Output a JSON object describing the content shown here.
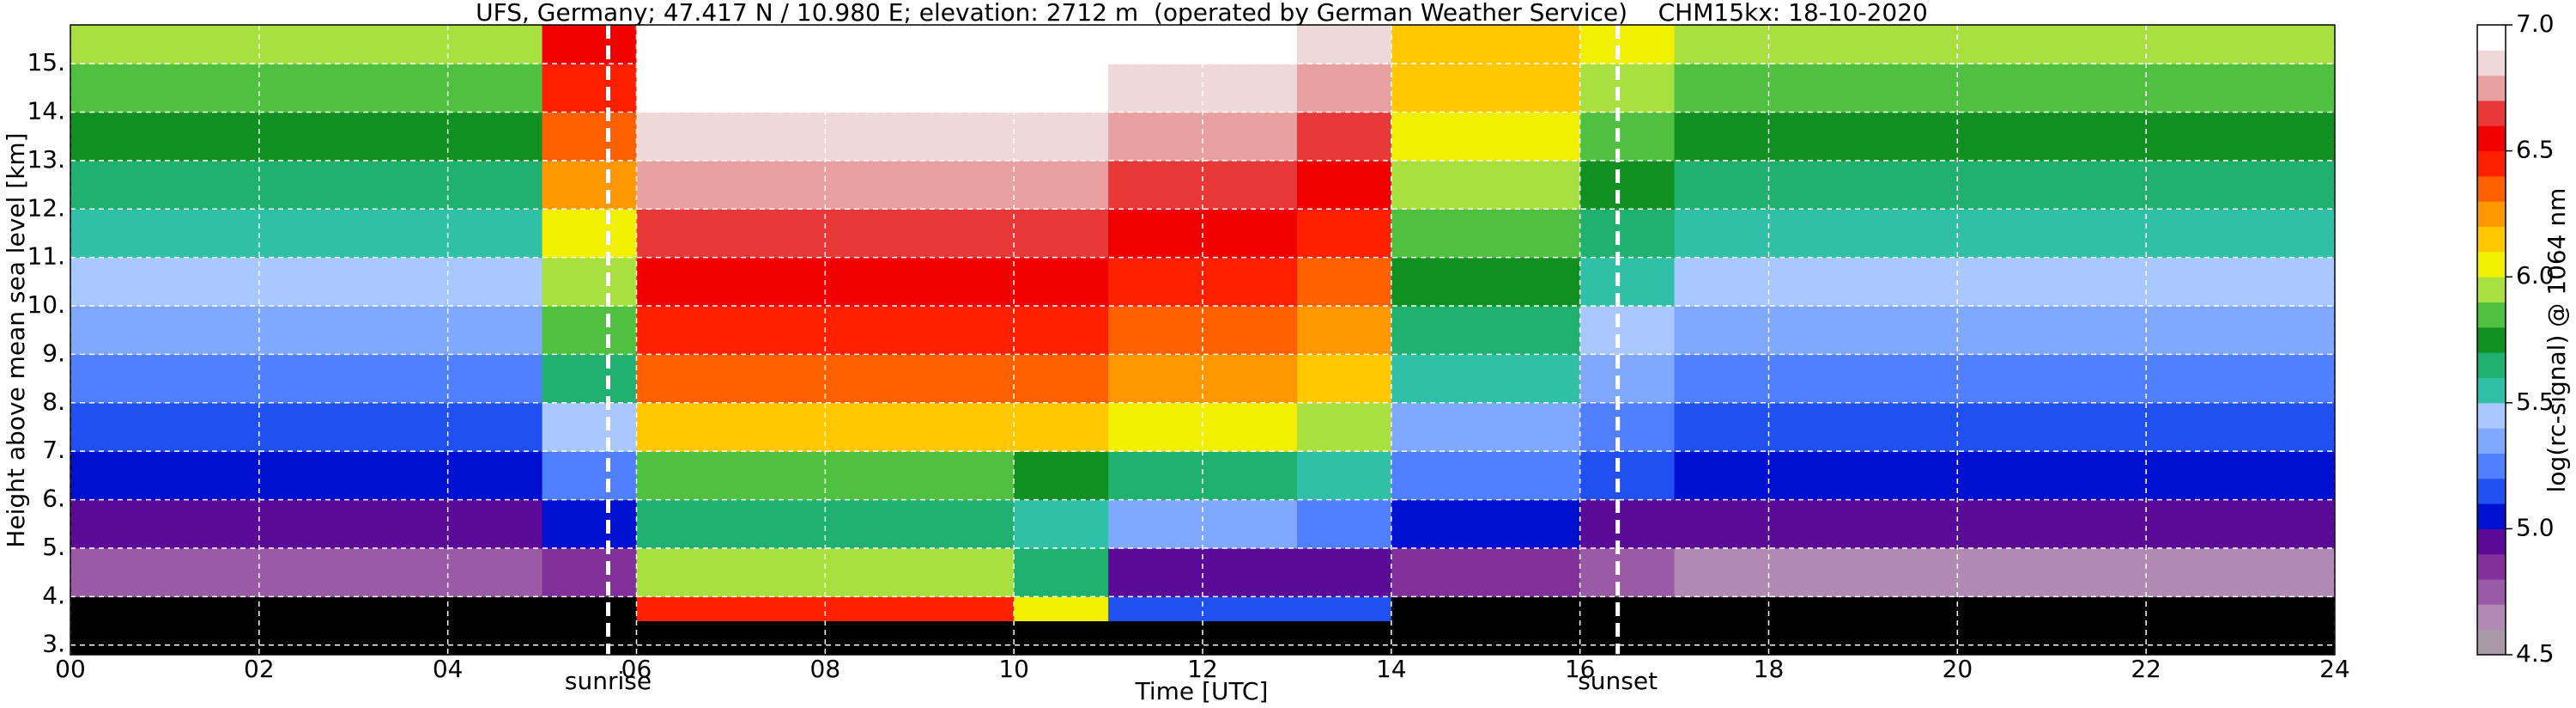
{
  "chart_data": {
    "type": "heatmap",
    "title": "UFS, Germany; 47.417 N / 10.980 E; elevation: 2712 m  (operated by German Weather Service)    CHM15kx: 18-10-2020",
    "x_label": "Time [UTC]",
    "y_label": "Height above mean sea level [km]",
    "colorbar_label": "log(rc-signal) @ 1064 nm",
    "x_bins": [
      0,
      1,
      2,
      3,
      4,
      5,
      6,
      7,
      8,
      9,
      10,
      11,
      12,
      13,
      14,
      15,
      16,
      17,
      18,
      19,
      20,
      21,
      22,
      23,
      24
    ],
    "y_bins": [
      2.8,
      3.5,
      4,
      5,
      6,
      7,
      8,
      9,
      10,
      11,
      12,
      13,
      14,
      15,
      15.8
    ],
    "xlim": [
      0,
      24
    ],
    "ylim": [
      2.8,
      15.8
    ],
    "xticks": [
      {
        "value": 0,
        "label": "00"
      },
      {
        "value": 2,
        "label": "02"
      },
      {
        "value": 4,
        "label": "04"
      },
      {
        "value": 6,
        "label": "06"
      },
      {
        "value": 8,
        "label": "08"
      },
      {
        "value": 10,
        "label": "10"
      },
      {
        "value": 12,
        "label": "12"
      },
      {
        "value": 14,
        "label": "14"
      },
      {
        "value": 16,
        "label": "16"
      },
      {
        "value": 18,
        "label": "18"
      },
      {
        "value": 20,
        "label": "20"
      },
      {
        "value": 22,
        "label": "22"
      },
      {
        "value": 24,
        "label": "24"
      }
    ],
    "yticks": [
      {
        "value": 3,
        "label": "3."
      },
      {
        "value": 4,
        "label": "4."
      },
      {
        "value": 5,
        "label": "5."
      },
      {
        "value": 6,
        "label": "6."
      },
      {
        "value": 7,
        "label": "7."
      },
      {
        "value": 8,
        "label": "8."
      },
      {
        "value": 9,
        "label": "9."
      },
      {
        "value": 10,
        "label": "10."
      },
      {
        "value": 11,
        "label": "11."
      },
      {
        "value": 12,
        "label": "12."
      },
      {
        "value": 13,
        "label": "13."
      },
      {
        "value": 14,
        "label": "14."
      },
      {
        "value": 15,
        "label": "15."
      }
    ],
    "clim": [
      4.5,
      7.0
    ],
    "cticks": [
      {
        "value": 4.5,
        "label": "4.5"
      },
      {
        "value": 5,
        "label": "5.0"
      },
      {
        "value": 5.5,
        "label": "5.5"
      },
      {
        "value": 6,
        "label": "6.0"
      },
      {
        "value": 6.5,
        "label": "6.5"
      },
      {
        "value": 7,
        "label": "7.0"
      }
    ],
    "colors": [
      "#a898a8",
      "#b08ab2",
      "#9a5aa6",
      "#82309a",
      "#5a0a96",
      "#0010d0",
      "#2050f0",
      "#5080ff",
      "#80a8ff",
      "#a8c8ff",
      "#30c0a8",
      "#20b070",
      "#109020",
      "#50c040",
      "#a8e040",
      "#f0f000",
      "#ffc800",
      "#ff9800",
      "#ff6000",
      "#ff2000",
      "#f00000",
      "#e83838",
      "#e8a0a0",
      "#f0d8d8",
      "#ffffff"
    ],
    "under_color": "#000000",
    "grid": true,
    "annotations": [
      {
        "text": "sunrise",
        "x": 5.7
      },
      {
        "text": "sunset",
        "x": 16.4
      }
    ],
    "values": [
      [
        4.3,
        4.3,
        4.3,
        4.3,
        4.3,
        4.3,
        4.3,
        4.3,
        4.3,
        4.3,
        4.3,
        4.4,
        4.4,
        4.4,
        4.3,
        4.3,
        4.3,
        4.3,
        4.3,
        4.3,
        4.3,
        4.3,
        4.3,
        4.3
      ],
      [
        4.3,
        4.3,
        4.3,
        4.3,
        4.3,
        4.4,
        6.4,
        6.4,
        6.4,
        6.4,
        6.0,
        5.1,
        5.1,
        5.1,
        4.3,
        4.3,
        4.3,
        4.3,
        4.3,
        4.3,
        4.3,
        4.3,
        4.3,
        4.3
      ],
      [
        4.7,
        4.7,
        4.7,
        4.7,
        4.7,
        4.8,
        5.9,
        5.9,
        5.9,
        5.9,
        5.6,
        4.9,
        4.9,
        4.9,
        4.8,
        4.8,
        4.7,
        4.6,
        4.6,
        4.6,
        4.6,
        4.6,
        4.6,
        4.6
      ],
      [
        4.9,
        4.9,
        4.9,
        4.9,
        4.9,
        5.0,
        5.6,
        5.6,
        5.6,
        5.6,
        5.5,
        5.3,
        5.3,
        5.2,
        5.0,
        5.0,
        4.9,
        4.9,
        4.9,
        4.9,
        4.9,
        4.9,
        4.9,
        4.9
      ],
      [
        5.0,
        5.0,
        5.0,
        5.0,
        5.0,
        5.2,
        5.8,
        5.8,
        5.8,
        5.8,
        5.7,
        5.6,
        5.6,
        5.5,
        5.2,
        5.2,
        5.1,
        5.0,
        5.0,
        5.0,
        5.0,
        5.0,
        5.0,
        5.0
      ],
      [
        5.1,
        5.1,
        5.1,
        5.1,
        5.1,
        5.4,
        6.1,
        6.1,
        6.1,
        6.1,
        6.1,
        6.0,
        6.0,
        5.9,
        5.3,
        5.3,
        5.2,
        5.1,
        5.1,
        5.1,
        5.1,
        5.1,
        5.1,
        5.1
      ],
      [
        5.2,
        5.2,
        5.2,
        5.2,
        5.2,
        5.6,
        6.3,
        6.3,
        6.3,
        6.3,
        6.3,
        6.2,
        6.2,
        6.1,
        5.5,
        5.5,
        5.3,
        5.2,
        5.2,
        5.2,
        5.2,
        5.2,
        5.2,
        5.2
      ],
      [
        5.3,
        5.3,
        5.3,
        5.3,
        5.3,
        5.8,
        6.4,
        6.4,
        6.4,
        6.4,
        6.4,
        6.3,
        6.3,
        6.2,
        5.6,
        5.6,
        5.4,
        5.3,
        5.3,
        5.3,
        5.3,
        5.3,
        5.3,
        5.3
      ],
      [
        5.4,
        5.4,
        5.4,
        5.4,
        5.4,
        5.9,
        6.5,
        6.5,
        6.5,
        6.5,
        6.5,
        6.4,
        6.4,
        6.3,
        5.7,
        5.7,
        5.5,
        5.4,
        5.4,
        5.4,
        5.4,
        5.4,
        5.4,
        5.4
      ],
      [
        5.5,
        5.5,
        5.5,
        5.5,
        5.5,
        6.0,
        6.6,
        6.6,
        6.6,
        6.6,
        6.6,
        6.5,
        6.5,
        6.4,
        5.8,
        5.8,
        5.6,
        5.5,
        5.5,
        5.5,
        5.5,
        5.5,
        5.5,
        5.5
      ],
      [
        5.6,
        5.6,
        5.6,
        5.6,
        5.6,
        6.2,
        6.7,
        6.7,
        6.7,
        6.7,
        6.7,
        6.6,
        6.6,
        6.5,
        5.9,
        5.9,
        5.7,
        5.6,
        5.6,
        5.6,
        5.6,
        5.6,
        5.6,
        5.6
      ],
      [
        5.7,
        5.7,
        5.7,
        5.7,
        5.7,
        6.3,
        6.8,
        6.8,
        6.8,
        6.8,
        6.8,
        6.7,
        6.7,
        6.6,
        6.0,
        6.0,
        5.8,
        5.7,
        5.7,
        5.7,
        5.7,
        5.7,
        5.7,
        5.7
      ],
      [
        5.8,
        5.8,
        5.8,
        5.8,
        5.8,
        6.4,
        6.9,
        6.9,
        6.9,
        6.9,
        6.9,
        6.8,
        6.8,
        6.7,
        6.1,
        6.1,
        5.9,
        5.8,
        5.8,
        5.8,
        5.8,
        5.8,
        5.8,
        5.8
      ],
      [
        5.9,
        5.9,
        5.9,
        5.9,
        5.9,
        6.5,
        6.9,
        6.9,
        6.9,
        6.9,
        6.9,
        6.9,
        6.9,
        6.8,
        6.1,
        6.1,
        6.0,
        5.9,
        5.9,
        5.9,
        5.9,
        5.9,
        5.9,
        5.9
      ]
    ]
  }
}
